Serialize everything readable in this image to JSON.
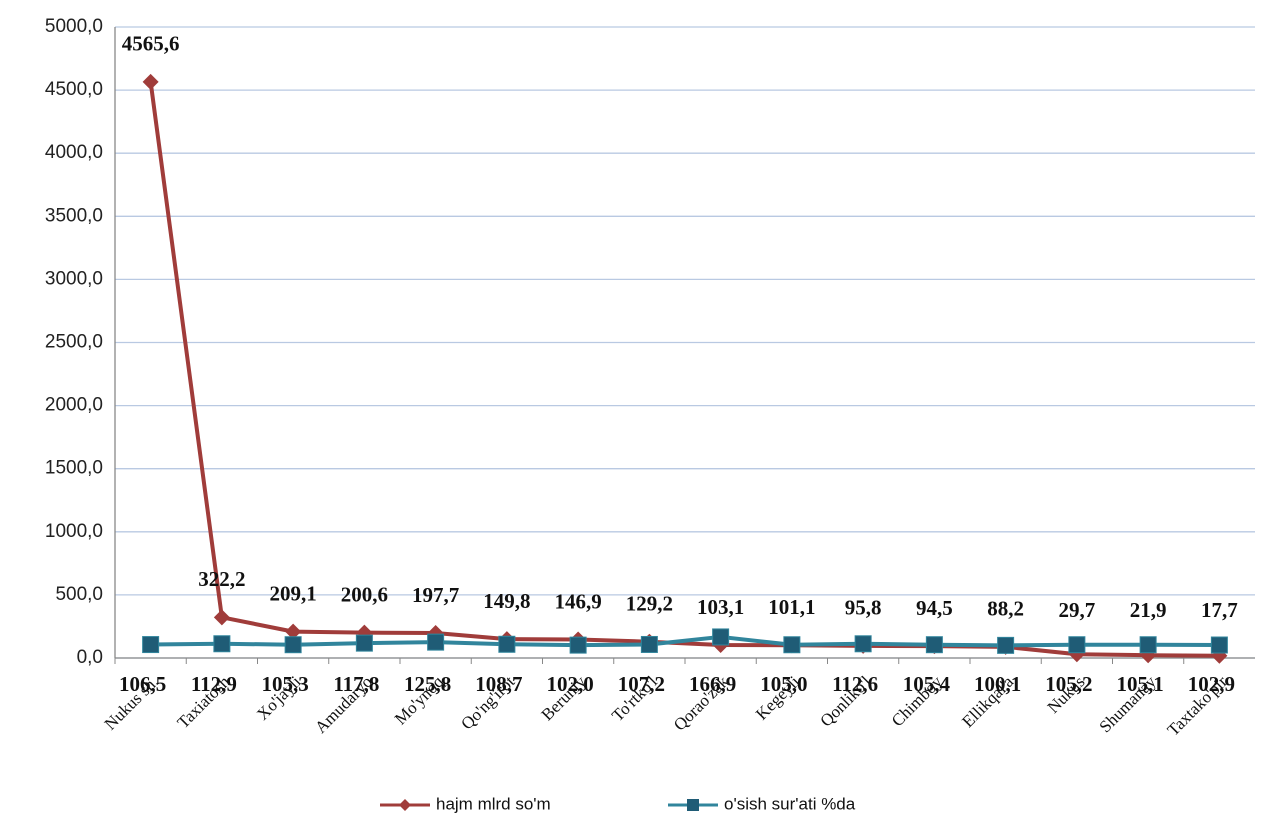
{
  "chart_data": {
    "type": "line",
    "categories": [
      "Nukus sh.",
      "Taxiatosh",
      "Xo'jayli",
      "Amudaryo",
      "Mo'ynoq",
      "Qo'ng'irot",
      "Beruniy",
      "To'rtko'l",
      "Qorao'zak",
      "Kegeyli",
      "Qonliko'l",
      "Chimboy",
      "Ellikqal'a",
      "Nukus",
      "Shumanay",
      "Taxtako'pir"
    ],
    "series": [
      {
        "name": "hajm mlrd so'm",
        "color": "#a03c3a",
        "marker": "diamond",
        "values": [
          4565.6,
          322.2,
          209.1,
          200.6,
          197.7,
          149.8,
          146.9,
          129.2,
          103.1,
          101.1,
          95.8,
          94.5,
          88.2,
          29.7,
          21.9,
          17.7
        ],
        "value_labels": [
          "4565,6",
          "322,2",
          "209,1",
          "200,6",
          "197,7",
          "149,8",
          "146,9",
          "129,2",
          "103,1",
          "101,1",
          "95,8",
          "94,5",
          "88,2",
          "29,7",
          "21,9",
          "17,7"
        ]
      },
      {
        "name": "o'sish sur'ati %da",
        "color": "#31859c",
        "marker": "square",
        "values": [
          106.5,
          112.9,
          105.3,
          117.8,
          125.8,
          108.7,
          102.0,
          107.2,
          166.9,
          105.0,
          112.6,
          105.4,
          100.1,
          105.2,
          105.1,
          102.9
        ],
        "value_labels": [
          "106,5",
          "112,9",
          "105,3",
          "117,8",
          "125,8",
          "108,7",
          "102,0",
          "107,2",
          "166,9",
          "105,0",
          "112,6",
          "105,4",
          "100,1",
          "105,2",
          "105,1",
          "102,9"
        ]
      }
    ],
    "ylim": [
      0,
      5000
    ],
    "yticks": [
      {
        "value": 0,
        "label": "0,0"
      },
      {
        "value": 500,
        "label": "500,0"
      },
      {
        "value": 1000,
        "label": "1000,0"
      },
      {
        "value": 1500,
        "label": "1500,0"
      },
      {
        "value": 2000,
        "label": "2000,0"
      },
      {
        "value": 2500,
        "label": "2500,0"
      },
      {
        "value": 3000,
        "label": "3000,0"
      },
      {
        "value": 3500,
        "label": "3500,0"
      },
      {
        "value": 4000,
        "label": "4000,0"
      },
      {
        "value": 4500,
        "label": "4500,0"
      },
      {
        "value": 5000,
        "label": "5000,0"
      }
    ],
    "grid": true,
    "legend": "bottom"
  }
}
